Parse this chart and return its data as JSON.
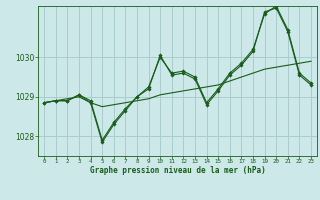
{
  "title": "Graphe pression niveau de la mer (hPa)",
  "background_color": "#cce8e8",
  "plot_bg_color": "#cce8e8",
  "grid_color": "#aacccc",
  "line_color": "#1a5c1a",
  "xlim": [
    -0.5,
    23.5
  ],
  "ylim": [
    1027.5,
    1031.3
  ],
  "yticks": [
    1028,
    1029,
    1030
  ],
  "xticks": [
    0,
    1,
    2,
    3,
    4,
    5,
    6,
    7,
    8,
    9,
    10,
    11,
    12,
    13,
    14,
    15,
    16,
    17,
    18,
    19,
    20,
    21,
    22,
    23
  ],
  "series": [
    [
      1028.85,
      1028.9,
      1028.95,
      1029.0,
      1028.85,
      1028.75,
      1028.8,
      1028.85,
      1028.9,
      1028.95,
      1029.05,
      1029.1,
      1029.15,
      1029.2,
      1029.25,
      1029.3,
      1029.4,
      1029.5,
      1029.6,
      1029.7,
      1029.75,
      1029.8,
      1029.85,
      1029.9
    ],
    [
      1028.85,
      1028.9,
      1028.9,
      1029.05,
      1028.85,
      1027.85,
      1028.3,
      1028.65,
      1029.0,
      1029.2,
      1030.05,
      1029.55,
      1029.6,
      1029.45,
      1028.8,
      1029.15,
      1029.55,
      1029.8,
      1030.15,
      1031.15,
      1031.25,
      1030.65,
      1029.55,
      1029.3
    ],
    [
      1028.85,
      1028.9,
      1028.9,
      1029.05,
      1028.9,
      1027.9,
      1028.35,
      1028.7,
      1029.0,
      1029.25,
      1030.0,
      1029.6,
      1029.65,
      1029.5,
      1028.85,
      1029.2,
      1029.6,
      1029.85,
      1030.2,
      1031.1,
      1031.3,
      1030.7,
      1029.6,
      1029.35
    ]
  ]
}
